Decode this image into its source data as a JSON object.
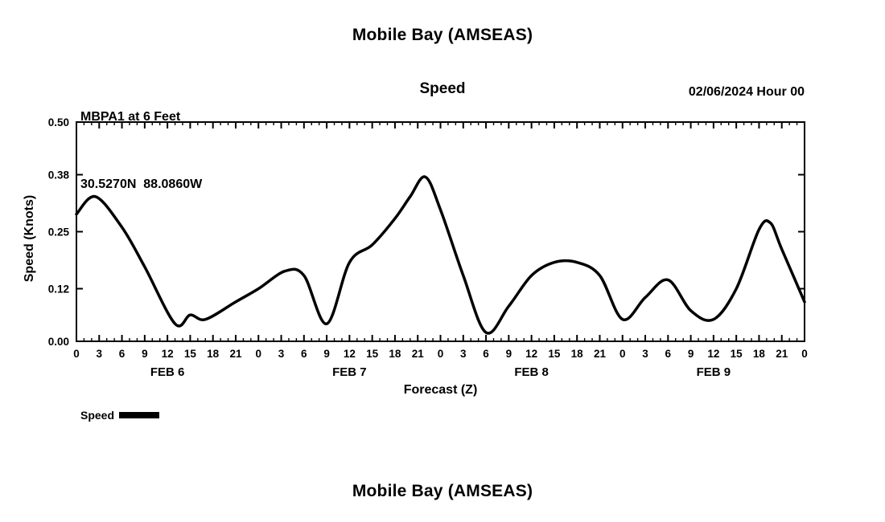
{
  "page": {
    "title_top": "Mobile Bay (AMSEAS)",
    "title_bottom": "Mobile Bay (AMSEAS)"
  },
  "header": {
    "station_line1": "MBPA1 at 6 Feet",
    "station_line2": "30.5270N  88.0860W",
    "center_label": "Speed",
    "datetime_label": "02/06/2024 Hour 00"
  },
  "chart_data": {
    "type": "line",
    "title": "Speed",
    "xlabel": "Forecast (Z)",
    "ylabel": "Speed (Knots)",
    "ylim": [
      0.0,
      0.5
    ],
    "yticks": [
      0.0,
      0.12,
      0.25,
      0.38,
      0.5
    ],
    "ytick_labels": [
      "0.00",
      "0.12",
      "0.25",
      "0.38",
      "0.50"
    ],
    "xlim_hours": [
      0,
      96
    ],
    "xtick_step_hours": 3,
    "xtick_labels": [
      "0",
      "3",
      "6",
      "9",
      "12",
      "15",
      "18",
      "21",
      "0",
      "3",
      "6",
      "9",
      "12",
      "15",
      "18",
      "21",
      "0",
      "3",
      "6",
      "9",
      "12",
      "15",
      "18",
      "21",
      "0",
      "3",
      "6",
      "9",
      "12",
      "15",
      "18",
      "21",
      "0"
    ],
    "day_labels": [
      {
        "label": "FEB 6",
        "center_hour": 12
      },
      {
        "label": "FEB 7",
        "center_hour": 36
      },
      {
        "label": "FEB 8",
        "center_hour": 60
      },
      {
        "label": "FEB 9",
        "center_hour": 84
      }
    ],
    "grid": "ticks-only",
    "legend": {
      "position": "bottom-left",
      "entries": [
        "Speed"
      ]
    },
    "series": [
      {
        "name": "Speed",
        "color": "#000000",
        "x_hours": [
          0,
          2.5,
          6,
          9,
          13,
          15,
          17,
          21,
          24,
          27.5,
          30,
          33,
          36,
          39,
          42,
          44,
          46,
          48,
          51,
          54,
          57,
          60,
          63,
          66,
          69,
          72,
          75,
          78,
          81,
          84,
          87,
          90,
          91.5,
          93,
          96
        ],
        "values": [
          0.29,
          0.33,
          0.26,
          0.17,
          0.04,
          0.06,
          0.05,
          0.09,
          0.12,
          0.16,
          0.15,
          0.04,
          0.18,
          0.22,
          0.28,
          0.33,
          0.375,
          0.3,
          0.15,
          0.02,
          0.08,
          0.15,
          0.18,
          0.18,
          0.15,
          0.05,
          0.1,
          0.14,
          0.07,
          0.05,
          0.12,
          0.255,
          0.27,
          0.21,
          0.09
        ]
      }
    ]
  }
}
